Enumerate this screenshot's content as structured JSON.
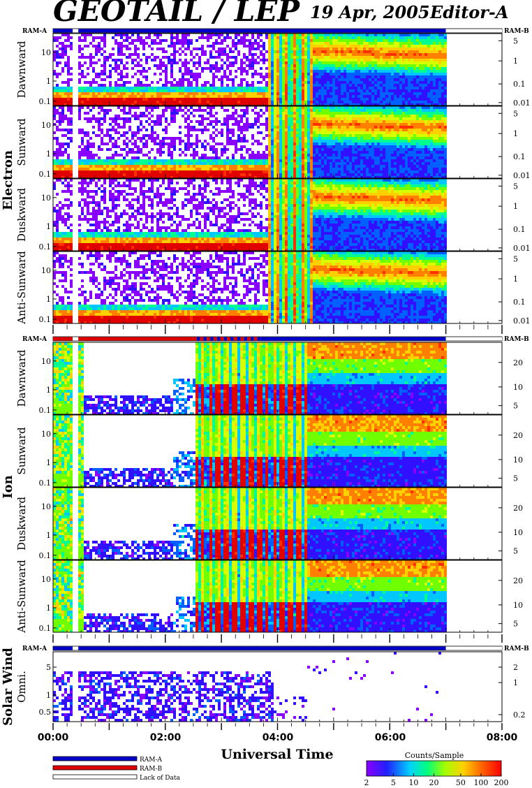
{
  "header": {
    "title": "GEOTAIL / LEP",
    "date": "19 Apr, 2005",
    "editor": "Editor-A"
  },
  "colors": {
    "ram_a": "#0000c8",
    "ram_b": "#e00000",
    "lack": "#ffffff"
  },
  "chart_data": {
    "type": "heatmap",
    "xlabel": "Universal Time",
    "x_ticks": [
      "00:00",
      "02:00",
      "04:00",
      "06:00",
      "08:00"
    ],
    "x_range_hours": [
      0,
      8
    ],
    "data_end_hours": 7.0,
    "groups": [
      {
        "name": "Electron",
        "mode_label_left": "RAM-A",
        "mode_label_right": "RAM-B",
        "mode_segments": [
          {
            "start": 0.0,
            "end": 0.35,
            "mode": "ram_a"
          },
          {
            "start": 0.35,
            "end": 0.45,
            "mode": "lack"
          },
          {
            "start": 0.45,
            "end": 7.0,
            "mode": "ram_a"
          },
          {
            "start": 7.0,
            "end": 8.0,
            "mode": "lack"
          }
        ],
        "y_ticks_left": [
          "10",
          "1",
          "0.1"
        ],
        "y_ticks_right": [
          "5",
          "1",
          "0.1",
          "0.01"
        ],
        "panels": [
          {
            "label": "Dawnward"
          },
          {
            "label": "Sunward"
          },
          {
            "label": "Duskward"
          },
          {
            "label": "Anti-Sunward"
          }
        ]
      },
      {
        "name": "Ion",
        "mode_label_left": "RAM-A",
        "mode_label_right": "RAM-B",
        "mode_segments": [
          {
            "start": 0.0,
            "end": 0.35,
            "mode": "ram_b"
          },
          {
            "start": 0.35,
            "end": 0.45,
            "mode": "lack"
          },
          {
            "start": 0.45,
            "end": 2.5,
            "mode": "ram_b"
          },
          {
            "start": 2.5,
            "end": 3.7,
            "mode": "ram_b_ram_a"
          },
          {
            "start": 3.7,
            "end": 7.0,
            "mode": "ram_a"
          },
          {
            "start": 7.0,
            "end": 8.0,
            "mode": "lack"
          }
        ],
        "y_ticks_left": [
          "10",
          "1",
          "0.1"
        ],
        "y_ticks_right": [
          "20",
          "10",
          "5"
        ],
        "panels": [
          {
            "label": "Dawnward"
          },
          {
            "label": "Sunward"
          },
          {
            "label": "Duskward"
          },
          {
            "label": "Anti-Sunward"
          }
        ]
      },
      {
        "name": "Solar Wind",
        "mode_label_left": "RAM-A",
        "mode_label_right": "RAM-B",
        "mode_segments": [
          {
            "start": 0.0,
            "end": 0.35,
            "mode": "ram_a"
          },
          {
            "start": 0.35,
            "end": 0.45,
            "mode": "lack"
          },
          {
            "start": 0.45,
            "end": 7.0,
            "mode": "ram_a"
          },
          {
            "start": 7.0,
            "end": 8.0,
            "mode": "lack"
          }
        ],
        "y_ticks_left": [
          "5",
          "1",
          "0.5"
        ],
        "y_ticks_right": [
          "2",
          "1",
          "0.2"
        ],
        "panels": [
          {
            "label": "Omni."
          }
        ]
      }
    ],
    "legend": {
      "items": [
        {
          "label": "RAM-A",
          "color_key": "ram_a"
        },
        {
          "label": "RAM-B",
          "color_key": "ram_b"
        },
        {
          "label": "Lack of Data",
          "color_key": "lack"
        }
      ]
    },
    "colorbar": {
      "title": "Counts/Sample",
      "ticks": [
        "2",
        "5",
        "10",
        "20",
        "50",
        "100",
        "200"
      ],
      "range": [
        2,
        200
      ],
      "scale": "log"
    }
  }
}
